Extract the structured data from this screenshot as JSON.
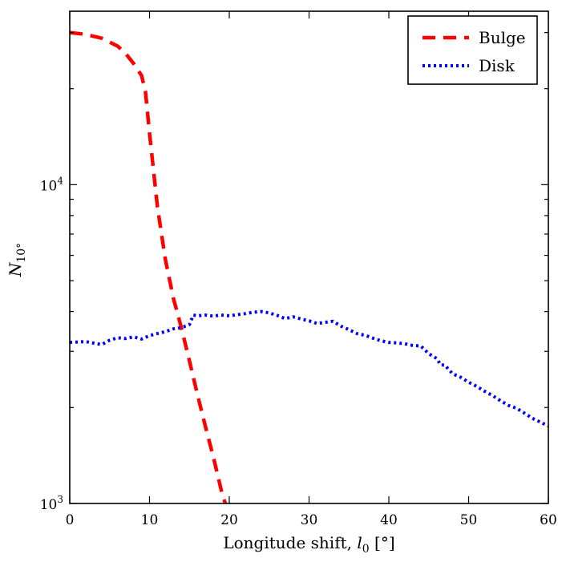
{
  "chart_data": {
    "type": "line",
    "title": "",
    "xlabel": "Longitude shift, l_0 [°]",
    "xlabel_parts": {
      "prefix": "Longitude shift, ",
      "var": "l",
      "sub": "0",
      "suffix": " [°]"
    },
    "ylabel": "N_{10°}",
    "ylabel_parts": {
      "var": "N",
      "sub": "10°"
    },
    "x_scale": "linear",
    "y_scale": "log",
    "xlim": [
      0,
      60
    ],
    "ylim": [
      1000,
      35000
    ],
    "x_ticks": [
      0,
      10,
      20,
      30,
      40,
      50,
      60
    ],
    "x_tick_labels": [
      "0",
      "10",
      "20",
      "30",
      "40",
      "50",
      "60"
    ],
    "y_major_ticks": [
      1000,
      10000
    ],
    "y_tick_labels": [
      {
        "base": "10",
        "exp": "3"
      },
      {
        "base": "10",
        "exp": "4"
      }
    ],
    "legend_position": "top-right",
    "grid": false,
    "series": [
      {
        "name": "Bulge",
        "color": "#ff0000",
        "style": "dashed",
        "x": [
          0,
          2,
          4,
          6,
          7,
          8,
          9,
          9.5,
          10,
          11,
          12,
          13,
          14,
          15,
          16,
          17,
          18,
          19,
          19.5
        ],
        "y": [
          30000,
          29600,
          28800,
          27200,
          25800,
          24000,
          22000,
          19500,
          14500,
          8500,
          5800,
          4400,
          3550,
          2800,
          2200,
          1750,
          1400,
          1100,
          1000
        ]
      },
      {
        "name": "Disk",
        "color": "#0000ff",
        "style": "dotted",
        "x": [
          0,
          2,
          4,
          5,
          6,
          7,
          8,
          9,
          10,
          11,
          12,
          13,
          14,
          15,
          15.5,
          16,
          17,
          18,
          19,
          20,
          21,
          22,
          23,
          24,
          25,
          26,
          27,
          28,
          29,
          30,
          31,
          32,
          33,
          34,
          35,
          36,
          37,
          38,
          39,
          40,
          41,
          42,
          43,
          44,
          45,
          46,
          46.5,
          47,
          48,
          49,
          50,
          51,
          52,
          53,
          54,
          55,
          56,
          57,
          58,
          59,
          60
        ],
        "y": [
          3200,
          3220,
          3150,
          3250,
          3310,
          3290,
          3330,
          3280,
          3360,
          3410,
          3460,
          3530,
          3560,
          3640,
          3900,
          3880,
          3900,
          3870,
          3900,
          3880,
          3910,
          3940,
          3980,
          4000,
          3960,
          3890,
          3800,
          3850,
          3790,
          3740,
          3670,
          3700,
          3730,
          3600,
          3510,
          3410,
          3370,
          3300,
          3240,
          3200,
          3190,
          3170,
          3130,
          3120,
          2950,
          2850,
          2720,
          2720,
          2550,
          2490,
          2400,
          2330,
          2250,
          2180,
          2100,
          2030,
          1990,
          1920,
          1850,
          1800,
          1750
        ]
      }
    ]
  }
}
